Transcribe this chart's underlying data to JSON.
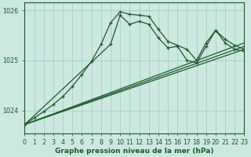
{
  "xlabel": "Graphe pression niveau de la mer (hPa)",
  "background_color": "#cce8e0",
  "grid_color": "#9dccc0",
  "line_color": "#1a5c2a",
  "xlim": [
    0,
    23
  ],
  "ylim": [
    1023.55,
    1026.15
  ],
  "yticks": [
    1024,
    1025,
    1026
  ],
  "xticks": [
    0,
    1,
    2,
    3,
    4,
    5,
    6,
    7,
    8,
    9,
    10,
    11,
    12,
    13,
    14,
    15,
    16,
    17,
    18,
    19,
    20,
    21,
    22,
    23
  ],
  "series": [
    {
      "x": [
        0,
        1,
        2,
        3,
        4,
        5,
        6,
        7,
        8,
        9,
        10,
        11,
        12,
        13,
        14,
        15,
        16,
        17,
        18,
        19,
        20,
        21,
        22,
        23
      ],
      "y": [
        1023.72,
        1023.85,
        1023.98,
        1024.12,
        1024.28,
        1024.48,
        1024.72,
        1024.98,
        1025.32,
        1025.75,
        1025.97,
        1025.92,
        1025.9,
        1025.88,
        1025.62,
        1025.38,
        1025.3,
        1025.22,
        1025.0,
        1025.35,
        1025.6,
        1025.42,
        1025.3,
        1025.22
      ],
      "marker": "+",
      "lw": 0.9
    },
    {
      "x": [
        0,
        23
      ],
      "y": [
        1023.72,
        1025.22
      ],
      "marker": null,
      "lw": 0.9
    },
    {
      "x": [
        0,
        23
      ],
      "y": [
        1023.72,
        1025.28
      ],
      "marker": null,
      "lw": 0.9
    },
    {
      "x": [
        0,
        23
      ],
      "y": [
        1023.72,
        1025.35
      ],
      "marker": null,
      "lw": 0.9
    },
    {
      "x": [
        0,
        9,
        10,
        11,
        12,
        13,
        14,
        15,
        16,
        17,
        18,
        19,
        20,
        21,
        22,
        23
      ],
      "y": [
        1023.72,
        1025.32,
        1025.9,
        1025.72,
        1025.78,
        1025.72,
        1025.45,
        1025.25,
        1025.28,
        1025.0,
        1024.95,
        1025.28,
        1025.6,
        1025.35,
        1025.22,
        1025.18
      ],
      "marker": "+",
      "lw": 0.9
    }
  ]
}
